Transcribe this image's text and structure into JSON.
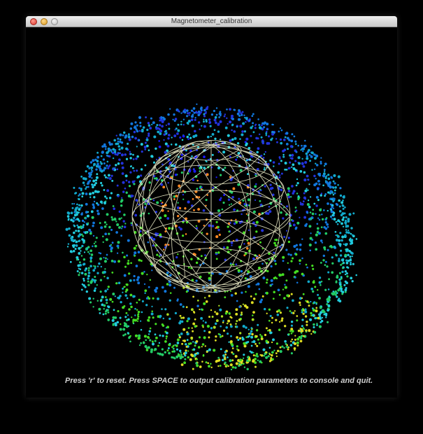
{
  "window": {
    "title": "Magnetometer_calibration"
  },
  "visualization": {
    "point_colors": [
      "#1a1aff",
      "#2233dd",
      "#1177dd",
      "#11aacc",
      "#22ccdd",
      "#22cc66",
      "#44dd22",
      "#aadd22",
      "#dddd22",
      "#ff8822"
    ],
    "sphere_color": "#f2f2cc",
    "background": "#000000"
  },
  "instructions": {
    "text": "Press 'r' to reset. Press SPACE to output calibration parameters to console and quit."
  }
}
